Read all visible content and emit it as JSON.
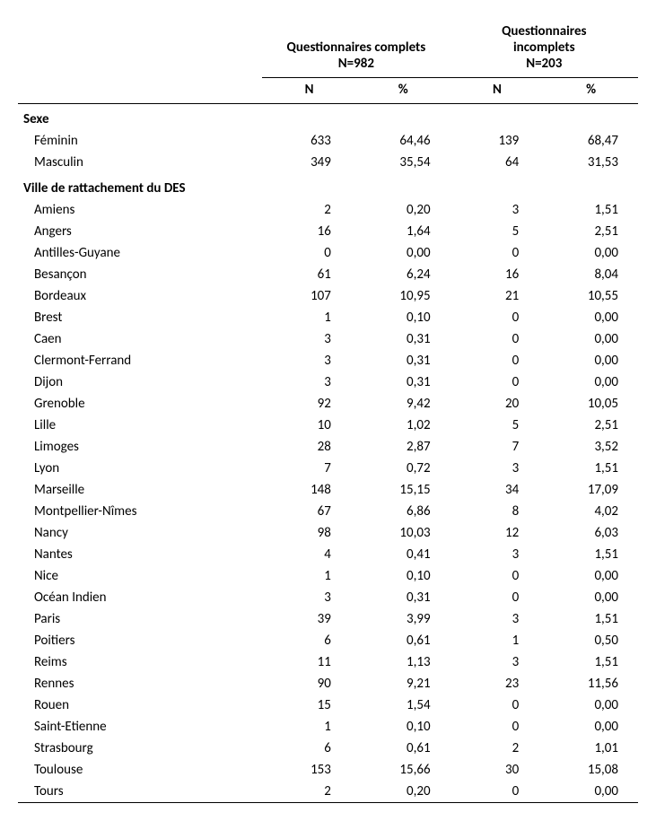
{
  "table": {
    "type": "table",
    "background_color": "#ffffff",
    "text_color": "#000000",
    "border_color": "#000000",
    "font_family": "Calibri",
    "header_fontsize": 15,
    "row_fontsize": 15,
    "groups": [
      {
        "title_line1": "Questionnaires complets",
        "title_line2": "N=982",
        "sub_n": "N",
        "sub_pct": "%"
      },
      {
        "title_line1": "Questionnaires",
        "title_line2": "incomplets",
        "title_line3": "N=203",
        "sub_n": "N",
        "sub_pct": "%"
      }
    ],
    "sections": [
      {
        "header": "Sexe",
        "rows": [
          {
            "label": "Féminin",
            "n1": "633",
            "p1": "64,46",
            "n2": "139",
            "p2": "68,47"
          },
          {
            "label": "Masculin",
            "n1": "349",
            "p1": "35,54",
            "n2": "64",
            "p2": "31,53"
          }
        ]
      },
      {
        "header": "Ville de rattachement du DES",
        "rows": [
          {
            "label": "Amiens",
            "n1": "2",
            "p1": "0,20",
            "n2": "3",
            "p2": "1,51"
          },
          {
            "label": "Angers",
            "n1": "16",
            "p1": "1,64",
            "n2": "5",
            "p2": "2,51"
          },
          {
            "label": "Antilles-Guyane",
            "n1": "0",
            "p1": "0,00",
            "n2": "0",
            "p2": "0,00"
          },
          {
            "label": "Besançon",
            "n1": "61",
            "p1": "6,24",
            "n2": "16",
            "p2": "8,04"
          },
          {
            "label": "Bordeaux",
            "n1": "107",
            "p1": "10,95",
            "n2": "21",
            "p2": "10,55"
          },
          {
            "label": "Brest",
            "n1": "1",
            "p1": "0,10",
            "n2": "0",
            "p2": "0,00"
          },
          {
            "label": "Caen",
            "n1": "3",
            "p1": "0,31",
            "n2": "0",
            "p2": "0,00"
          },
          {
            "label": "Clermont-Ferrand",
            "n1": "3",
            "p1": "0,31",
            "n2": "0",
            "p2": "0,00"
          },
          {
            "label": "Dijon",
            "n1": "3",
            "p1": "0,31",
            "n2": "0",
            "p2": "0,00"
          },
          {
            "label": "Grenoble",
            "n1": "92",
            "p1": "9,42",
            "n2": "20",
            "p2": "10,05"
          },
          {
            "label": "Lille",
            "n1": "10",
            "p1": "1,02",
            "n2": "5",
            "p2": "2,51"
          },
          {
            "label": "Limoges",
            "n1": "28",
            "p1": "2,87",
            "n2": "7",
            "p2": "3,52"
          },
          {
            "label": "Lyon",
            "n1": "7",
            "p1": "0,72",
            "n2": "3",
            "p2": "1,51"
          },
          {
            "label": "Marseille",
            "n1": "148",
            "p1": "15,15",
            "n2": "34",
            "p2": "17,09"
          },
          {
            "label": "Montpellier-Nîmes",
            "n1": "67",
            "p1": "6,86",
            "n2": "8",
            "p2": "4,02"
          },
          {
            "label": "Nancy",
            "n1": "98",
            "p1": "10,03",
            "n2": "12",
            "p2": "6,03"
          },
          {
            "label": "Nantes",
            "n1": "4",
            "p1": "0,41",
            "n2": "3",
            "p2": "1,51"
          },
          {
            "label": "Nice",
            "n1": "1",
            "p1": "0,10",
            "n2": "0",
            "p2": "0,00"
          },
          {
            "label": "Océan Indien",
            "n1": "3",
            "p1": "0,31",
            "n2": "0",
            "p2": "0,00"
          },
          {
            "label": "Paris",
            "n1": "39",
            "p1": "3,99",
            "n2": "3",
            "p2": "1,51"
          },
          {
            "label": "Poitiers",
            "n1": "6",
            "p1": "0,61",
            "n2": "1",
            "p2": "0,50"
          },
          {
            "label": "Reims",
            "n1": "11",
            "p1": "1,13",
            "n2": "3",
            "p2": "1,51"
          },
          {
            "label": "Rennes",
            "n1": "90",
            "p1": "9,21",
            "n2": "23",
            "p2": "11,56"
          },
          {
            "label": "Rouen",
            "n1": "15",
            "p1": "1,54",
            "n2": "0",
            "p2": "0,00"
          },
          {
            "label": "Saint-Etienne",
            "n1": "1",
            "p1": "0,10",
            "n2": "0",
            "p2": "0,00"
          },
          {
            "label": "Strasbourg",
            "n1": "6",
            "p1": "0,61",
            "n2": "2",
            "p2": "1,01"
          },
          {
            "label": "Toulouse",
            "n1": "153",
            "p1": "15,66",
            "n2": "30",
            "p2": "15,08"
          },
          {
            "label": "Tours",
            "n1": "2",
            "p1": "0,20",
            "n2": "0",
            "p2": "0,00"
          }
        ]
      }
    ]
  }
}
